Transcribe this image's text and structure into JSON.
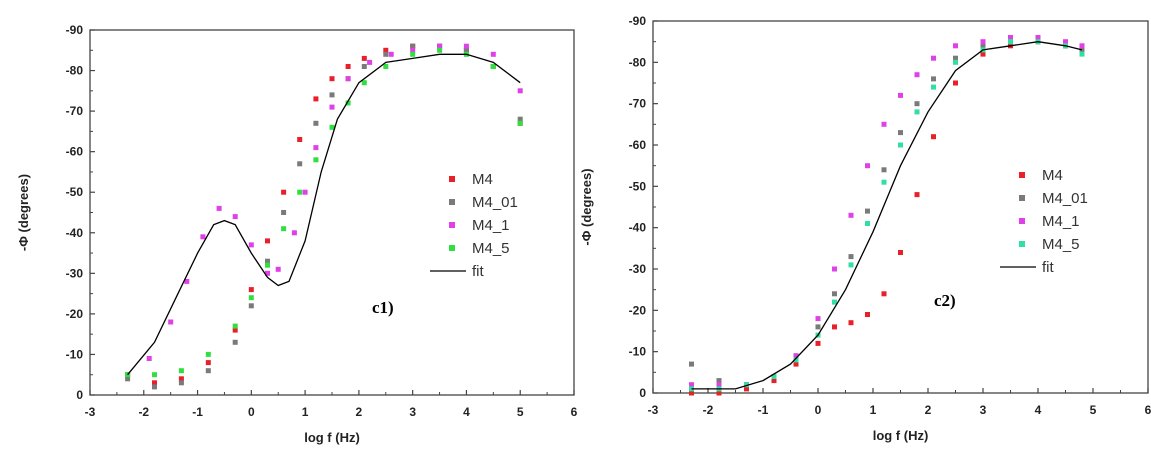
{
  "chart_data": [
    {
      "type": "scatter",
      "panel_label": "c1)",
      "xlabel": "log f (Hz)",
      "ylabel": "-Φ (degrees)",
      "xlim": [
        -3,
        6
      ],
      "ylim": [
        0,
        -90
      ],
      "xticks": [
        "-3",
        "-2",
        "-1",
        "0",
        "1",
        "2",
        "3",
        "4",
        "5",
        "6"
      ],
      "yticks": [
        "0",
        "-10",
        "-20",
        "-30",
        "-40",
        "-50",
        "-60",
        "-70",
        "-80",
        "-90"
      ],
      "grid": false,
      "legend_position": "right",
      "series": [
        {
          "name": "M4",
          "color": "#e8202a",
          "x": [
            -2.3,
            -1.8,
            -1.3,
            -0.8,
            -0.3,
            0.0,
            0.3,
            0.6,
            0.9,
            1.2,
            1.5,
            1.8,
            2.1,
            2.5,
            3.0,
            3.5,
            4.0,
            4.5,
            5.0
          ],
          "y": [
            -5,
            -3,
            -4,
            -8,
            -16,
            -26,
            -38,
            -50,
            -63,
            -73,
            -78,
            -81,
            -83,
            -85,
            -86,
            -86,
            -85,
            -81,
            -67
          ]
        },
        {
          "name": "M4_01",
          "color": "#7a7a7a",
          "x": [
            -2.3,
            -1.8,
            -1.3,
            -0.8,
            -0.3,
            0.0,
            0.3,
            0.6,
            0.9,
            1.2,
            1.5,
            1.8,
            2.1,
            2.5,
            3.0,
            3.5,
            4.0,
            4.5,
            5.0
          ],
          "y": [
            -4,
            -2,
            -3,
            -6,
            -13,
            -22,
            -33,
            -45,
            -57,
            -67,
            -74,
            -78,
            -81,
            -84,
            -86,
            -86,
            -85,
            -81,
            -68
          ]
        },
        {
          "name": "M4_1",
          "color": "#e040e8",
          "x": [
            -2.3,
            -1.9,
            -1.5,
            -1.2,
            -0.9,
            -0.6,
            -0.3,
            0.0,
            0.3,
            0.5,
            0.8,
            1.0,
            1.2,
            1.5,
            1.8,
            2.2,
            2.6,
            3.0,
            3.5,
            4.0,
            4.5,
            5.0
          ],
          "y": [
            -5,
            -9,
            -18,
            -28,
            -39,
            -46,
            -44,
            -37,
            -30,
            -31,
            -40,
            -50,
            -61,
            -71,
            -78,
            -82,
            -84,
            -85,
            -86,
            -86,
            -84,
            -75
          ]
        },
        {
          "name": "M4_5",
          "color": "#30e040",
          "x": [
            -2.3,
            -1.8,
            -1.3,
            -0.8,
            -0.3,
            0.0,
            0.3,
            0.6,
            0.9,
            1.2,
            1.5,
            1.8,
            2.1,
            2.5,
            3.0,
            3.5,
            4.0,
            4.5,
            5.0
          ],
          "y": [
            -5,
            -5,
            -6,
            -10,
            -17,
            -24,
            -32,
            -41,
            -50,
            -58,
            -66,
            -72,
            -77,
            -81,
            -84,
            -85,
            -84,
            -81,
            -67
          ]
        },
        {
          "name": "fit",
          "color": "#000000",
          "style": "line",
          "x": [
            -2.3,
            -1.8,
            -1.4,
            -1.0,
            -0.7,
            -0.5,
            -0.3,
            0.0,
            0.3,
            0.5,
            0.7,
            1.0,
            1.3,
            1.6,
            2.0,
            2.5,
            3.0,
            3.5,
            4.0,
            4.5,
            5.0
          ],
          "y": [
            -5,
            -13,
            -24,
            -35,
            -42,
            -43,
            -42,
            -35,
            -29,
            -27,
            -28,
            -38,
            -55,
            -68,
            -77,
            -82,
            -83,
            -84,
            -84,
            -82,
            -77
          ]
        }
      ]
    },
    {
      "type": "scatter",
      "panel_label": "c2)",
      "xlabel": "log f (Hz)",
      "ylabel": "-Φ (degrees)",
      "xlim": [
        -3,
        6
      ],
      "ylim": [
        0,
        -90
      ],
      "xticks": [
        "-3",
        "-2",
        "-1",
        "0",
        "1",
        "2",
        "3",
        "4",
        "5",
        "6"
      ],
      "yticks": [
        "0",
        "-10",
        "-20",
        "-30",
        "-40",
        "-50",
        "-60",
        "-70",
        "-80",
        "-90"
      ],
      "grid": false,
      "legend_position": "right",
      "series": [
        {
          "name": "M4",
          "color": "#e8202a",
          "x": [
            -2.3,
            -1.8,
            -1.3,
            -0.8,
            -0.4,
            0.0,
            0.3,
            0.6,
            0.9,
            1.2,
            1.5,
            1.8,
            2.1,
            2.5,
            3.0,
            3.5,
            4.0,
            4.5,
            4.8
          ],
          "y": [
            0,
            0,
            -1,
            -3,
            -7,
            -12,
            -16,
            -17,
            -19,
            -24,
            -34,
            -48,
            -62,
            -75,
            -82,
            -84,
            -85,
            -84,
            -83
          ]
        },
        {
          "name": "M4_01",
          "color": "#7a7a7a",
          "x": [
            -2.3,
            -1.8,
            -1.3,
            -0.8,
            -0.4,
            0.0,
            0.3,
            0.6,
            0.9,
            1.2,
            1.5,
            1.8,
            2.1,
            2.5,
            3.0,
            3.5,
            4.0,
            4.5,
            4.8
          ],
          "y": [
            -7,
            -3,
            -2,
            -4,
            -9,
            -16,
            -24,
            -33,
            -44,
            -54,
            -63,
            -70,
            -76,
            -81,
            -84,
            -85,
            -85,
            -84,
            -83
          ]
        },
        {
          "name": "M4_1",
          "color": "#e040e8",
          "x": [
            -2.3,
            -1.8,
            -1.3,
            -0.8,
            -0.4,
            0.0,
            0.3,
            0.6,
            0.9,
            1.2,
            1.5,
            1.8,
            2.1,
            2.5,
            3.0,
            3.5,
            4.0,
            4.5,
            4.8
          ],
          "y": [
            -2,
            -2,
            -2,
            -4,
            -9,
            -18,
            -30,
            -43,
            -55,
            -65,
            -72,
            -77,
            -81,
            -84,
            -85,
            -86,
            -86,
            -85,
            -84
          ]
        },
        {
          "name": "M4_5",
          "color": "#30e0a0",
          "x": [
            -2.3,
            -1.8,
            -1.3,
            -0.8,
            -0.4,
            0.0,
            0.3,
            0.6,
            0.9,
            1.2,
            1.5,
            1.8,
            2.1,
            2.5,
            3.0,
            3.5,
            4.0,
            4.5,
            4.8
          ],
          "y": [
            -1,
            -1,
            -2,
            -4,
            -8,
            -14,
            -22,
            -31,
            -41,
            -51,
            -60,
            -68,
            -74,
            -80,
            -83,
            -85,
            -85,
            -84,
            -82
          ]
        },
        {
          "name": "fit",
          "color": "#000000",
          "style": "line",
          "x": [
            -2.3,
            -1.5,
            -1.0,
            -0.5,
            0.0,
            0.5,
            1.0,
            1.5,
            2.0,
            2.5,
            3.0,
            3.5,
            4.0,
            4.5,
            4.8
          ],
          "y": [
            -1,
            -1,
            -3,
            -7,
            -14,
            -25,
            -39,
            -55,
            -68,
            -78,
            -83,
            -84,
            -85,
            -84,
            -83
          ]
        }
      ]
    }
  ]
}
